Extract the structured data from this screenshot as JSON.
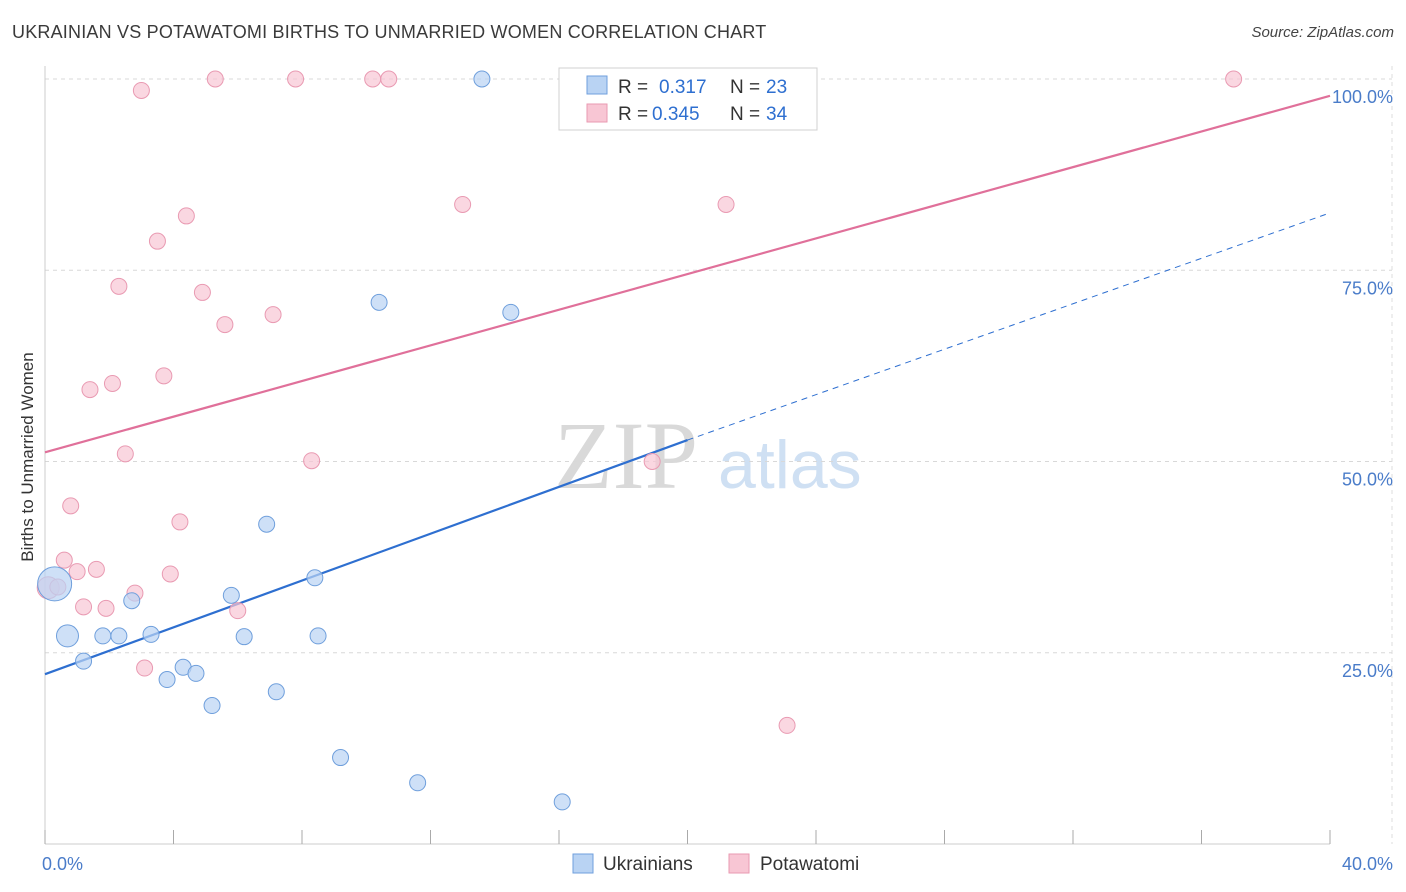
{
  "title": "UKRAINIAN VS POTAWATOMI BIRTHS TO UNMARRIED WOMEN CORRELATION CHART",
  "source": "Source: ZipAtlas.com",
  "watermark": {
    "zip": "ZIP",
    "atlas": "atlas"
  },
  "colors": {
    "ukrainians_fill": "#b9d3f3",
    "ukrainians_stroke": "#6f9fdc",
    "ukrainians_line": "#2e6fd0",
    "potawatomi_fill": "#f8c6d4",
    "potawatomi_stroke": "#e99ab2",
    "potawatomi_line": "#e0709a",
    "grid": "#d8d8d8",
    "tick_label": "#4a7cc9"
  },
  "legend": {
    "rows": [
      {
        "r_label": "R =",
        "r_value": "0.317",
        "n_label": "N =",
        "n_value": "23"
      },
      {
        "r_label": "R =",
        "r_value": "0.345",
        "n_label": "N =",
        "n_value": "34"
      }
    ]
  },
  "bottom_legend": [
    "Ukrainians",
    "Potawatomi"
  ],
  "chart_data": {
    "type": "scatter",
    "title": "UKRAINIAN VS POTAWATOMI BIRTHS TO UNMARRIED WOMEN CORRELATION CHART",
    "xlabel": "",
    "ylabel": "Births to Unmarried Women",
    "xlim": [
      0,
      40
    ],
    "ylim": [
      0,
      100
    ],
    "x_tick_labels": [
      {
        "value": 0,
        "label": "0.0%"
      },
      {
        "value": 40,
        "label": "40.0%"
      }
    ],
    "y_tick_labels": [
      {
        "value": 25,
        "label": "25.0%"
      },
      {
        "value": 50,
        "label": "50.0%"
      },
      {
        "value": 75,
        "label": "75.0%"
      },
      {
        "value": 100,
        "label": "100.0%"
      }
    ],
    "series": [
      {
        "name": "Ukrainians",
        "r": 0.317,
        "n": 23,
        "trend": {
          "x0": 0,
          "y0": 22.2,
          "x1": 20,
          "y1": 52.8,
          "dashed_to_x": 40,
          "dashed_to_y": 82.5
        },
        "points": [
          {
            "x": 0.3,
            "y": 34.0,
            "size": 34
          },
          {
            "x": 0.7,
            "y": 27.2,
            "size": 22
          },
          {
            "x": 1.2,
            "y": 23.9,
            "size": 16
          },
          {
            "x": 1.8,
            "y": 27.2,
            "size": 16
          },
          {
            "x": 2.3,
            "y": 27.2,
            "size": 16
          },
          {
            "x": 2.7,
            "y": 31.8,
            "size": 16
          },
          {
            "x": 3.3,
            "y": 27.4,
            "size": 16
          },
          {
            "x": 3.8,
            "y": 21.5,
            "size": 16
          },
          {
            "x": 4.3,
            "y": 23.1,
            "size": 16
          },
          {
            "x": 4.7,
            "y": 22.3,
            "size": 16
          },
          {
            "x": 5.2,
            "y": 18.1,
            "size": 16
          },
          {
            "x": 5.8,
            "y": 32.5,
            "size": 16
          },
          {
            "x": 6.2,
            "y": 27.1,
            "size": 16
          },
          {
            "x": 6.9,
            "y": 41.8,
            "size": 16
          },
          {
            "x": 7.2,
            "y": 19.9,
            "size": 16
          },
          {
            "x": 8.4,
            "y": 34.8,
            "size": 16
          },
          {
            "x": 8.5,
            "y": 27.2,
            "size": 16
          },
          {
            "x": 9.2,
            "y": 11.3,
            "size": 16
          },
          {
            "x": 10.4,
            "y": 70.8,
            "size": 16
          },
          {
            "x": 11.6,
            "y": 8.0,
            "size": 16
          },
          {
            "x": 13.6,
            "y": 100.0,
            "size": 16
          },
          {
            "x": 14.5,
            "y": 69.5,
            "size": 16
          },
          {
            "x": 16.1,
            "y": 5.5,
            "size": 16
          }
        ]
      },
      {
        "name": "Potawatomi",
        "r": 0.345,
        "n": 34,
        "trend": {
          "x0": 0,
          "y0": 51.2,
          "x1": 40,
          "y1": 97.8
        },
        "points": [
          {
            "x": 0.1,
            "y": 33.5,
            "size": 22
          },
          {
            "x": 0.4,
            "y": 33.6,
            "size": 16
          },
          {
            "x": 0.6,
            "y": 37.1,
            "size": 16
          },
          {
            "x": 0.8,
            "y": 44.2,
            "size": 16
          },
          {
            "x": 1.0,
            "y": 35.6,
            "size": 16
          },
          {
            "x": 1.2,
            "y": 31.0,
            "size": 16
          },
          {
            "x": 1.4,
            "y": 59.4,
            "size": 16
          },
          {
            "x": 1.6,
            "y": 35.9,
            "size": 16
          },
          {
            "x": 1.9,
            "y": 30.8,
            "size": 16
          },
          {
            "x": 2.1,
            "y": 60.2,
            "size": 16
          },
          {
            "x": 2.3,
            "y": 72.9,
            "size": 16
          },
          {
            "x": 2.5,
            "y": 51.0,
            "size": 16
          },
          {
            "x": 2.8,
            "y": 32.8,
            "size": 16
          },
          {
            "x": 3.0,
            "y": 98.5,
            "size": 16
          },
          {
            "x": 3.1,
            "y": 23.0,
            "size": 16
          },
          {
            "x": 3.5,
            "y": 78.8,
            "size": 16
          },
          {
            "x": 3.7,
            "y": 61.2,
            "size": 16
          },
          {
            "x": 3.9,
            "y": 35.3,
            "size": 16
          },
          {
            "x": 4.2,
            "y": 42.1,
            "size": 16
          },
          {
            "x": 4.4,
            "y": 82.1,
            "size": 16
          },
          {
            "x": 4.9,
            "y": 72.1,
            "size": 16
          },
          {
            "x": 5.3,
            "y": 100.0,
            "size": 16
          },
          {
            "x": 5.6,
            "y": 67.9,
            "size": 16
          },
          {
            "x": 6.0,
            "y": 30.5,
            "size": 16
          },
          {
            "x": 7.1,
            "y": 69.2,
            "size": 16
          },
          {
            "x": 7.8,
            "y": 100.0,
            "size": 16
          },
          {
            "x": 8.3,
            "y": 50.1,
            "size": 16
          },
          {
            "x": 10.2,
            "y": 100.0,
            "size": 16
          },
          {
            "x": 10.7,
            "y": 100.0,
            "size": 16
          },
          {
            "x": 13.0,
            "y": 83.6,
            "size": 16
          },
          {
            "x": 18.9,
            "y": 50.0,
            "size": 16
          },
          {
            "x": 21.2,
            "y": 83.6,
            "size": 16
          },
          {
            "x": 23.1,
            "y": 15.5,
            "size": 16
          },
          {
            "x": 37.0,
            "y": 100.0,
            "size": 16
          }
        ]
      }
    ],
    "grid": true,
    "legend_position": "top-center"
  }
}
